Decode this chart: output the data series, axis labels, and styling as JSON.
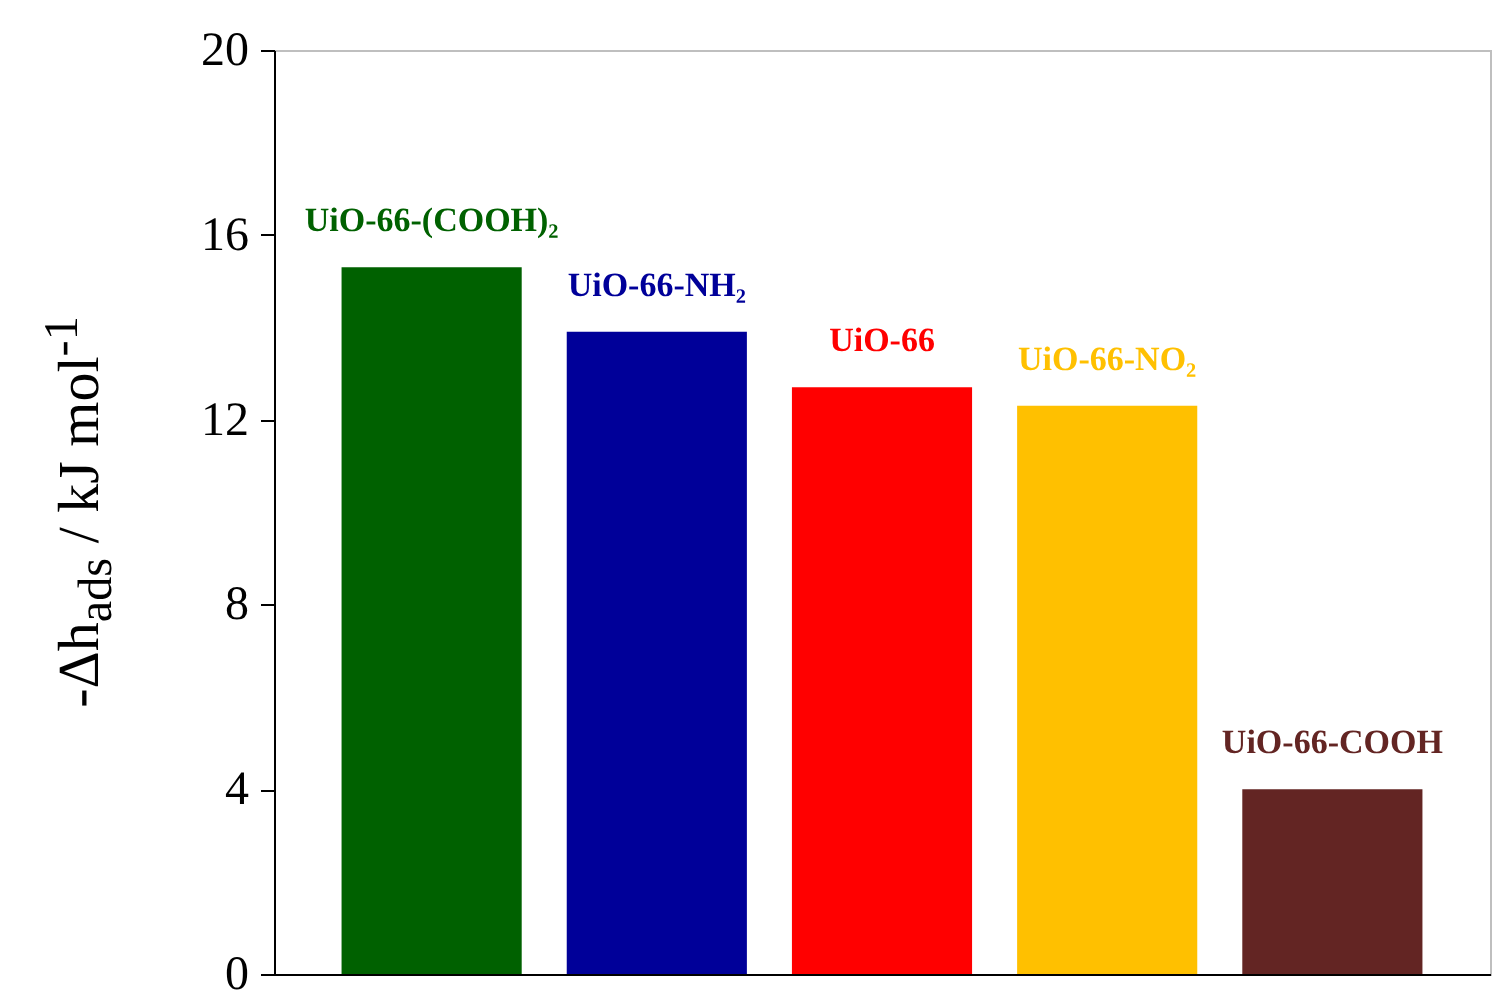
{
  "chart_data": {
    "type": "bar",
    "ylabel": "-Δh$_{ads}$ / kJ mol$^{-1}$",
    "categories": [
      "UiO-66-(COOH)₂",
      "UiO-66-NH₂",
      "UiO-66",
      "UiO-66-NO₂",
      "UiO-66-COOH"
    ],
    "values": [
      15.3,
      13.9,
      12.7,
      12.3,
      4.0
    ],
    "colors": [
      "#006100",
      "#000099",
      "#ff0000",
      "#ffc000",
      "#632523"
    ],
    "ylim": [
      0,
      20
    ],
    "yticks": [
      0,
      4,
      8,
      12,
      16,
      20
    ],
    "grid": false,
    "tick_labels": "y"
  }
}
